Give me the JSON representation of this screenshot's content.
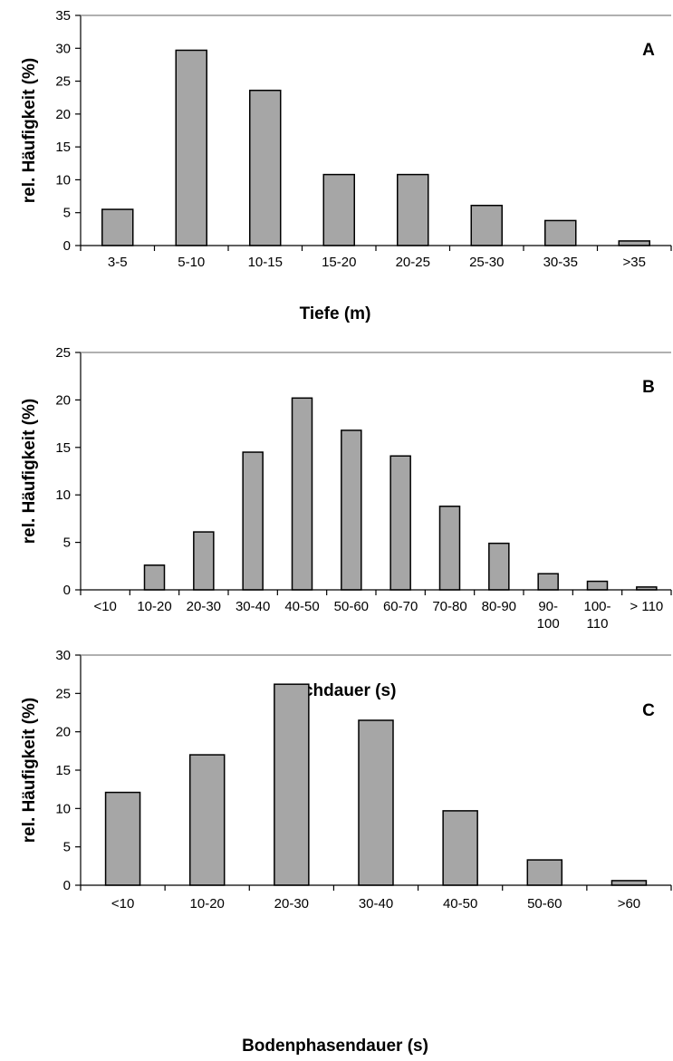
{
  "chart_data": [
    {
      "type": "bar",
      "panel_label": "A",
      "categories": [
        "3-5",
        "5-10",
        "10-15",
        "15-20",
        "20-25",
        "25-30",
        "30-35",
        ">35"
      ],
      "values": [
        5.5,
        29.7,
        23.6,
        10.8,
        10.8,
        6.1,
        3.8,
        0.7
      ],
      "xlabel": "Tiefe (m)",
      "ylabel": "rel. Häufigkeit (%)",
      "ylim": [
        0,
        35
      ],
      "yticks": [
        0,
        5,
        10,
        15,
        20,
        25,
        30,
        35
      ],
      "bar_color": "#a6a6a6"
    },
    {
      "type": "bar",
      "panel_label": "B",
      "categories": [
        "<10",
        "10-20",
        "20-30",
        "30-40",
        "40-50",
        "50-60",
        "60-70",
        "70-80",
        "80-90",
        "90-100",
        "100-110",
        "> 110"
      ],
      "tick_lines": [
        [
          "<10"
        ],
        [
          "10-20"
        ],
        [
          "20-30"
        ],
        [
          "30-40"
        ],
        [
          "40-50"
        ],
        [
          "50-60"
        ],
        [
          "60-70"
        ],
        [
          "70-80"
        ],
        [
          "80-90"
        ],
        [
          "90-",
          "100"
        ],
        [
          "100-",
          "110"
        ],
        [
          "> 110"
        ]
      ],
      "values": [
        0,
        2.6,
        6.1,
        14.5,
        20.2,
        16.8,
        14.1,
        8.8,
        4.9,
        1.7,
        0.9,
        0.3
      ],
      "xlabel": "Tauchdauer (s)",
      "ylabel": "rel. Häufigkeit (%)",
      "ylim": [
        0,
        25
      ],
      "yticks": [
        0,
        5,
        10,
        15,
        20,
        25
      ],
      "bar_color": "#a6a6a6"
    },
    {
      "type": "bar",
      "panel_label": "C",
      "categories": [
        "<10",
        "10-20",
        "20-30",
        "30-40",
        "40-50",
        "50-60",
        ">60"
      ],
      "values": [
        12.1,
        17.0,
        26.2,
        21.5,
        9.7,
        3.3,
        0.6
      ],
      "xlabel": "Bodenphasendauer (s)",
      "ylabel": "rel. Häufigkeit (%)",
      "ylim": [
        0,
        30
      ],
      "yticks": [
        0,
        5,
        10,
        15,
        20,
        25,
        30
      ],
      "bar_color": "#a6a6a6"
    }
  ]
}
